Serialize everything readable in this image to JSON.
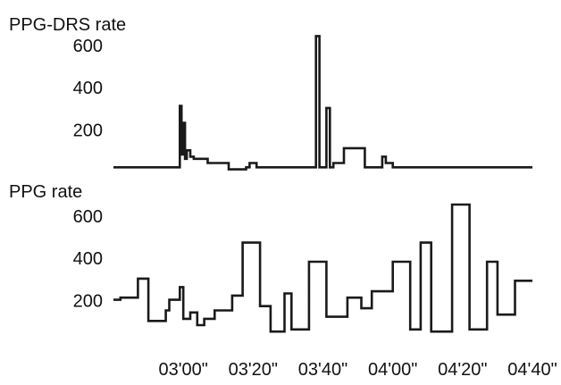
{
  "chart_data": [
    {
      "type": "line",
      "title": "",
      "ylabel": "PPG-DRS rate",
      "xlabel": "",
      "ylim": [
        0,
        650
      ],
      "xlim": [
        "02:40",
        "04:40"
      ],
      "yticks": [
        "200",
        "400",
        "600"
      ],
      "ytick_values": [
        200,
        400,
        600
      ],
      "grid": false,
      "series": [
        {
          "x": [
            "02:40",
            "02:59",
            "02:59",
            "02:59.5",
            "02:59.5",
            "03:00",
            "03:00",
            "03:00.5",
            "03:00.5",
            "03:01",
            "03:01",
            "03:02",
            "03:02",
            "03:03",
            "03:03",
            "03:07",
            "03:07",
            "03:13",
            "03:13",
            "03:18",
            "03:18",
            "03:19",
            "03:19",
            "03:21",
            "03:21",
            "03:22",
            "03:22",
            "03:38",
            "03:38",
            "03:39",
            "03:39",
            "03:41",
            "03:41",
            "03:42",
            "03:42",
            "03:43",
            "03:43",
            "03:46",
            "03:46",
            "03:52",
            "03:52",
            "03:57",
            "03:57",
            "03:58",
            "03:58",
            "04:00",
            "04:00",
            "04:40"
          ],
          "y": [
            20,
            20,
            310,
            310,
            80,
            80,
            230,
            230,
            60,
            60,
            100,
            100,
            70,
            70,
            60,
            60,
            40,
            40,
            10,
            10,
            20,
            20,
            40,
            40,
            20,
            20,
            20,
            20,
            640,
            640,
            20,
            20,
            300,
            300,
            20,
            20,
            40,
            40,
            110,
            110,
            20,
            20,
            70,
            70,
            40,
            40,
            20,
            20
          ]
        }
      ]
    },
    {
      "type": "line",
      "title": "",
      "ylabel": "PPG rate",
      "xlabel": "",
      "ylim": [
        0,
        650
      ],
      "xlim": [
        "02:40",
        "04:40"
      ],
      "yticks": [
        "200",
        "400",
        "600"
      ],
      "ytick_values": [
        200,
        400,
        600
      ],
      "xticks": [
        "03'00\"",
        "03'20\"",
        "03'40\"",
        "04'00\"",
        "04'20\"",
        "04'40\""
      ],
      "xtick_values": [
        "03:00",
        "03:20",
        "03:40",
        "04:00",
        "04:20",
        "04:40"
      ],
      "grid": false,
      "series": [
        {
          "x": [
            "02:40",
            "02:42",
            "02:42",
            "02:47",
            "02:47",
            "02:50",
            "02:50",
            "02:55",
            "02:55",
            "02:56",
            "02:56",
            "02:59",
            "02:59",
            "03:00",
            "03:00",
            "03:02",
            "03:02",
            "03:04",
            "03:04",
            "03:06",
            "03:06",
            "03:09",
            "03:09",
            "03:14",
            "03:14",
            "03:17",
            "03:17",
            "03:22",
            "03:22",
            "03:25",
            "03:25",
            "03:29",
            "03:29",
            "03:31",
            "03:31",
            "03:36",
            "03:36",
            "03:41",
            "03:41",
            "03:47",
            "03:47",
            "03:51",
            "03:51",
            "03:54",
            "03:54",
            "04:00",
            "04:00",
            "04:05",
            "04:05",
            "04:08",
            "04:08",
            "04:11",
            "04:11",
            "04:17",
            "04:17",
            "04:22",
            "04:22",
            "04:27",
            "04:27",
            "04:30",
            "04:30",
            "04:35",
            "04:35",
            "04:40"
          ],
          "y": [
            200,
            200,
            210,
            210,
            300,
            300,
            100,
            100,
            150,
            150,
            200,
            200,
            260,
            260,
            110,
            110,
            140,
            140,
            80,
            80,
            110,
            110,
            150,
            150,
            220,
            220,
            470,
            470,
            170,
            170,
            50,
            50,
            230,
            230,
            60,
            60,
            380,
            380,
            120,
            120,
            210,
            210,
            160,
            160,
            240,
            240,
            380,
            380,
            60,
            60,
            470,
            470,
            50,
            50,
            650,
            650,
            60,
            60,
            380,
            380,
            130,
            130,
            290,
            290
          ]
        }
      ]
    }
  ]
}
